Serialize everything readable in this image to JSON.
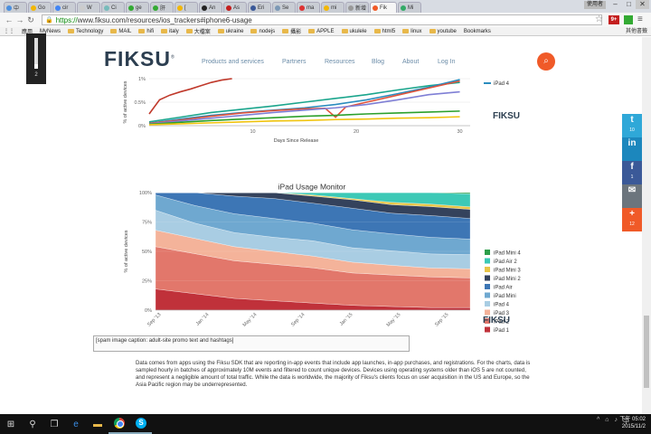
{
  "browser": {
    "tabs": [
      {
        "label": "中",
        "color": "#4a8fdf"
      },
      {
        "label": "Go",
        "color": "#f2b705"
      },
      {
        "label": "cir",
        "color": "#4285f4"
      },
      {
        "label": "W",
        "color": "#ccc"
      },
      {
        "label": "Ci",
        "color": "#7bb"
      },
      {
        "label": "ge",
        "color": "#3a3"
      },
      {
        "label": "肝",
        "color": "#3a3"
      },
      {
        "label": "[",
        "color": "#f2b705"
      },
      {
        "label": "An",
        "color": "#222"
      },
      {
        "label": "As",
        "color": "#c41e1e"
      },
      {
        "label": "Eri",
        "color": "#3b5998"
      },
      {
        "label": "Se",
        "color": "#7c98b6"
      },
      {
        "label": "ma",
        "color": "#d33"
      },
      {
        "label": "mi",
        "color": "#f2b705"
      },
      {
        "label": "新增",
        "color": "#999"
      },
      {
        "label": "Fik",
        "color": "#f05a28"
      },
      {
        "label": "Mi",
        "color": "#3a6"
      }
    ],
    "active_tab_index": 15,
    "user_label": "使用者",
    "url_https": "https://",
    "url_rest": "www.fiksu.com/resources/ios_trackers#iphone6-usage",
    "back_icon": "back-arrow-icon",
    "forward_icon": "forward-arrow-icon",
    "reload_icon": "reload-icon",
    "ext_badge": "9+",
    "bookmarks": [
      "應用",
      "MyNews",
      "Technology",
      "MAIL",
      "hifi",
      "italy",
      "大檔案",
      "ukraine",
      "nodejs",
      "攝影",
      "APPLE",
      "ukulele",
      "html5",
      "linux",
      "youtube",
      "Bookmarks"
    ],
    "other_bookmarks": "其他書籤"
  },
  "site": {
    "logo": "FIKSU",
    "logo_mark": "®",
    "nav": [
      "Products and services",
      "Partners",
      "Resources",
      "Blog",
      "About",
      "Log In"
    ],
    "watermark": "FIKSU"
  },
  "widget": {
    "value": "2",
    "level": 0.15
  },
  "share": [
    {
      "icon": "twitter-icon",
      "glyph": "t",
      "count": "10",
      "color": "#2fa8d8"
    },
    {
      "icon": "linkedin-icon",
      "glyph": "in",
      "count": "",
      "color": "#1c87bd"
    },
    {
      "icon": "facebook-icon",
      "glyph": "f",
      "count": "1",
      "color": "#3b5998"
    },
    {
      "icon": "email-icon",
      "glyph": "✉",
      "count": "",
      "color": "#6c757d"
    },
    {
      "icon": "plus-icon",
      "glyph": "+",
      "count": "12",
      "color": "#f05a28"
    }
  ],
  "chart_data": [
    {
      "type": "line",
      "title": "",
      "xlabel": "Days Since Release",
      "ylabel": "% of active devices",
      "xlim": [
        0,
        31
      ],
      "ylim": [
        0,
        1
      ],
      "x_ticks": [
        10,
        20,
        30
      ],
      "y_ticks": [
        "0%",
        "0.5%",
        "1%"
      ],
      "grid": true,
      "legend": [
        {
          "name": "iPad 4",
          "color": "#2b8cbe"
        }
      ],
      "series": [
        {
          "color": "#c0392b",
          "x": [
            0,
            1,
            2,
            3,
            4,
            5,
            6,
            7,
            8
          ],
          "y": [
            0.25,
            0.55,
            0.65,
            0.72,
            0.78,
            0.85,
            0.92,
            0.97,
            1.0
          ]
        },
        {
          "color": "#1aa58c",
          "x": [
            0,
            3,
            6,
            9,
            12,
            15,
            18,
            21,
            24,
            27,
            30
          ],
          "y": [
            0.08,
            0.18,
            0.28,
            0.35,
            0.42,
            0.5,
            0.58,
            0.66,
            0.76,
            0.85,
            0.92
          ]
        },
        {
          "color": "#2b8cbe",
          "x": [
            0,
            3,
            6,
            9,
            12,
            15,
            18,
            21,
            24,
            27,
            30
          ],
          "y": [
            0.05,
            0.14,
            0.22,
            0.28,
            0.33,
            0.38,
            0.45,
            0.55,
            0.68,
            0.82,
            0.98
          ]
        },
        {
          "color": "#e0533b",
          "x": [
            0,
            3,
            6,
            9,
            12,
            15,
            17,
            18,
            19,
            21,
            24,
            27,
            30
          ],
          "y": [
            0.05,
            0.12,
            0.2,
            0.27,
            0.32,
            0.36,
            0.37,
            0.18,
            0.4,
            0.5,
            0.65,
            0.8,
            0.95
          ]
        },
        {
          "color": "#7f7fd5",
          "x": [
            0,
            3,
            6,
            9,
            12,
            15,
            18,
            21,
            24,
            27,
            30
          ],
          "y": [
            0.04,
            0.1,
            0.16,
            0.22,
            0.28,
            0.33,
            0.38,
            0.45,
            0.55,
            0.66,
            0.72
          ]
        },
        {
          "color": "#2ca02c",
          "x": [
            0,
            3,
            6,
            9,
            12,
            15,
            18,
            21,
            24,
            27,
            30
          ],
          "y": [
            0.03,
            0.07,
            0.11,
            0.14,
            0.17,
            0.2,
            0.22,
            0.25,
            0.27,
            0.29,
            0.31
          ]
        },
        {
          "color": "#f1c40f",
          "x": [
            0,
            3,
            6,
            9,
            12,
            15,
            18,
            21,
            24,
            27,
            30
          ],
          "y": [
            0.02,
            0.04,
            0.06,
            0.08,
            0.1,
            0.11,
            0.13,
            0.14,
            0.16,
            0.17,
            0.19
          ]
        }
      ]
    },
    {
      "type": "area",
      "stacked": "percent",
      "title": "iPad Usage Monitor",
      "ylabel": "% of active devices",
      "x_ticks": [
        "Sep '13",
        "Jan '14",
        "May '14",
        "Sep '14",
        "Jan '15",
        "May '15",
        "Sep '15"
      ],
      "y_ticks": [
        "0%",
        "25%",
        "50%",
        "75%",
        "100%"
      ],
      "legend_position": "right",
      "series": [
        {
          "name": "iPad 1",
          "color": "#c0313a",
          "values": [
            18,
            14,
            10,
            8,
            6,
            4,
            3,
            2,
            2
          ]
        },
        {
          "name": "iPad 2",
          "color": "#e2776b",
          "values": [
            36,
            34,
            32,
            31,
            30,
            27,
            26,
            24,
            23
          ]
        },
        {
          "name": "iPad 3",
          "color": "#f4b39a",
          "values": [
            14,
            13,
            12,
            11,
            10,
            9,
            8,
            7,
            7
          ]
        },
        {
          "name": "iPad 4",
          "color": "#a9cde3",
          "values": [
            17,
            13,
            12,
            12,
            13,
            12,
            12,
            11,
            11
          ]
        },
        {
          "name": "iPad Mini",
          "color": "#6fa8d0",
          "values": [
            13,
            15,
            16,
            16,
            15,
            15,
            14,
            13,
            12
          ]
        },
        {
          "name": "iPad Air",
          "color": "#3d76b5",
          "values": [
            2,
            11,
            15,
            17,
            17,
            18,
            17,
            17,
            16
          ]
        },
        {
          "name": "iPad Mini 2",
          "color": "#34425c",
          "values": [
            0,
            0,
            3,
            5,
            6,
            7,
            7,
            7,
            7
          ]
        },
        {
          "name": "iPad Mini 3",
          "color": "#e8c547",
          "values": [
            0,
            0,
            0,
            0,
            1,
            1,
            2,
            2,
            2
          ]
        },
        {
          "name": "iPad Air 2",
          "color": "#3cc9b6",
          "values": [
            0,
            0,
            0,
            0,
            2,
            5,
            8,
            9,
            10
          ]
        },
        {
          "name": "iPad Mini 4",
          "color": "#2d9e4a",
          "values": [
            0,
            0,
            0,
            0,
            0,
            0,
            0,
            0,
            1
          ]
        }
      ]
    }
  ],
  "alt_text": "[spam image caption: adult-site promo text and hashtags]",
  "description": "Data comes from apps using the Fiksu SDK that are reporting in-app events that include app launches, in-app purchases, and registrations. For the charts, data is sampled hourly in batches of approximately 10M events and filtered to count unique devices. Devices using operating systems older than iOS 5 are not counted, and represent a negligible amount of total traffic. While the data is worldwide, the majority of Fiksu's clients focus on user acquisition in the US and Europe, so the Asia Pacific region may be underrepresented.",
  "taskbar": {
    "start_icon": "windows-start-icon",
    "search_icon": "search-icon",
    "taskview_icon": "task-view-icon",
    "apps": [
      "edge-icon",
      "file-explorer-icon",
      "chrome-icon",
      "skype-icon"
    ],
    "tray": [
      "^",
      "⌂",
      "♪",
      "中"
    ],
    "time": "下午 05:02",
    "date": "2015/11/2"
  }
}
